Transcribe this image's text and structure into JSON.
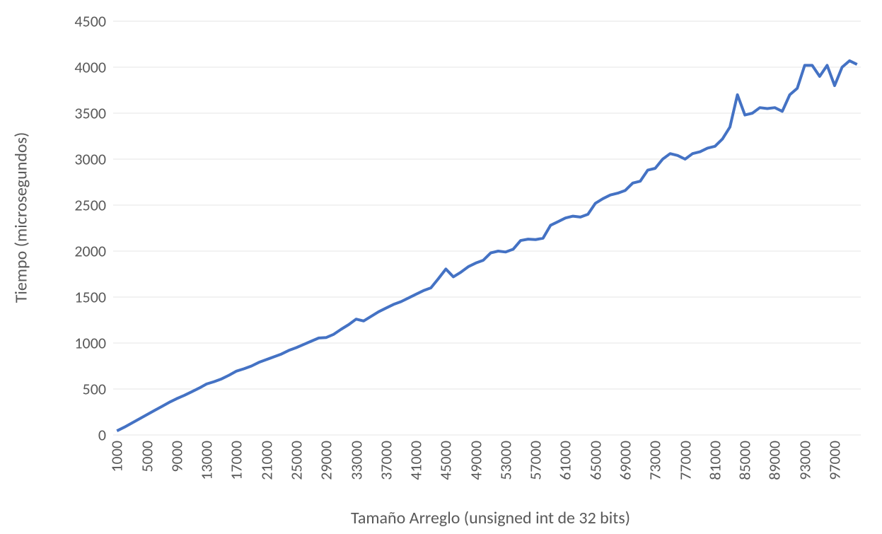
{
  "chart": {
    "type": "line",
    "y_axis_title": "Tiempo (microsegundos)",
    "x_axis_title": "Tamaño Arreglo (unsigned int de 32 bits)",
    "title_fontsize": 24,
    "label_fontsize": 22,
    "background_color": "#ffffff",
    "grid_color": "#e6e6e6",
    "text_color": "#595959",
    "line_color": "#4472c4",
    "line_width": 4,
    "ylim": [
      0,
      4500
    ],
    "ytick_step": 500,
    "y_ticks": [
      0,
      500,
      1000,
      1500,
      2000,
      2500,
      3000,
      3500,
      4000,
      4500
    ],
    "x_labels": [
      "1000",
      "5000",
      "9000",
      "13000",
      "17000",
      "21000",
      "25000",
      "29000",
      "33000",
      "37000",
      "41000",
      "45000",
      "49000",
      "53000",
      "57000",
      "61000",
      "65000",
      "69000",
      "73000",
      "77000",
      "81000",
      "85000",
      "89000",
      "93000",
      "97000"
    ],
    "x_values": [
      1000,
      2000,
      3000,
      4000,
      5000,
      6000,
      7000,
      8000,
      9000,
      10000,
      11000,
      12000,
      13000,
      14000,
      15000,
      16000,
      17000,
      18000,
      19000,
      20000,
      21000,
      22000,
      23000,
      24000,
      25000,
      26000,
      27000,
      28000,
      29000,
      30000,
      31000,
      32000,
      33000,
      34000,
      35000,
      36000,
      37000,
      38000,
      39000,
      40000,
      41000,
      42000,
      43000,
      44000,
      45000,
      46000,
      47000,
      48000,
      49000,
      50000,
      51000,
      52000,
      53000,
      54000,
      55000,
      56000,
      57000,
      58000,
      59000,
      60000,
      61000,
      62000,
      63000,
      64000,
      65000,
      66000,
      67000,
      68000,
      69000,
      70000,
      71000,
      72000,
      73000,
      74000,
      75000,
      76000,
      77000,
      78000,
      79000,
      80000,
      81000,
      82000,
      83000,
      84000,
      85000,
      86000,
      87000,
      88000,
      89000,
      90000,
      91000,
      92000,
      93000,
      94000,
      95000,
      96000,
      97000,
      98000,
      99000,
      100000
    ],
    "y_values": [
      45,
      85,
      130,
      175,
      220,
      265,
      310,
      355,
      395,
      430,
      470,
      510,
      555,
      580,
      610,
      650,
      695,
      720,
      750,
      790,
      820,
      850,
      880,
      920,
      950,
      985,
      1020,
      1055,
      1060,
      1095,
      1150,
      1200,
      1260,
      1240,
      1290,
      1340,
      1380,
      1420,
      1450,
      1490,
      1530,
      1570,
      1600,
      1700,
      1805,
      1720,
      1770,
      1830,
      1870,
      1900,
      1980,
      2000,
      1990,
      2020,
      2115,
      2130,
      2125,
      2140,
      2280,
      2320,
      2360,
      2380,
      2370,
      2400,
      2520,
      2570,
      2610,
      2630,
      2660,
      2740,
      2760,
      2880,
      2900,
      3000,
      3060,
      3040,
      3000,
      3060,
      3080,
      3120,
      3140,
      3220,
      3350,
      3700,
      3480,
      3500,
      3560,
      3550,
      3560,
      3520,
      3700,
      3770,
      4020,
      4020,
      3900,
      4020,
      3800,
      4000,
      4070,
      4030
    ]
  }
}
